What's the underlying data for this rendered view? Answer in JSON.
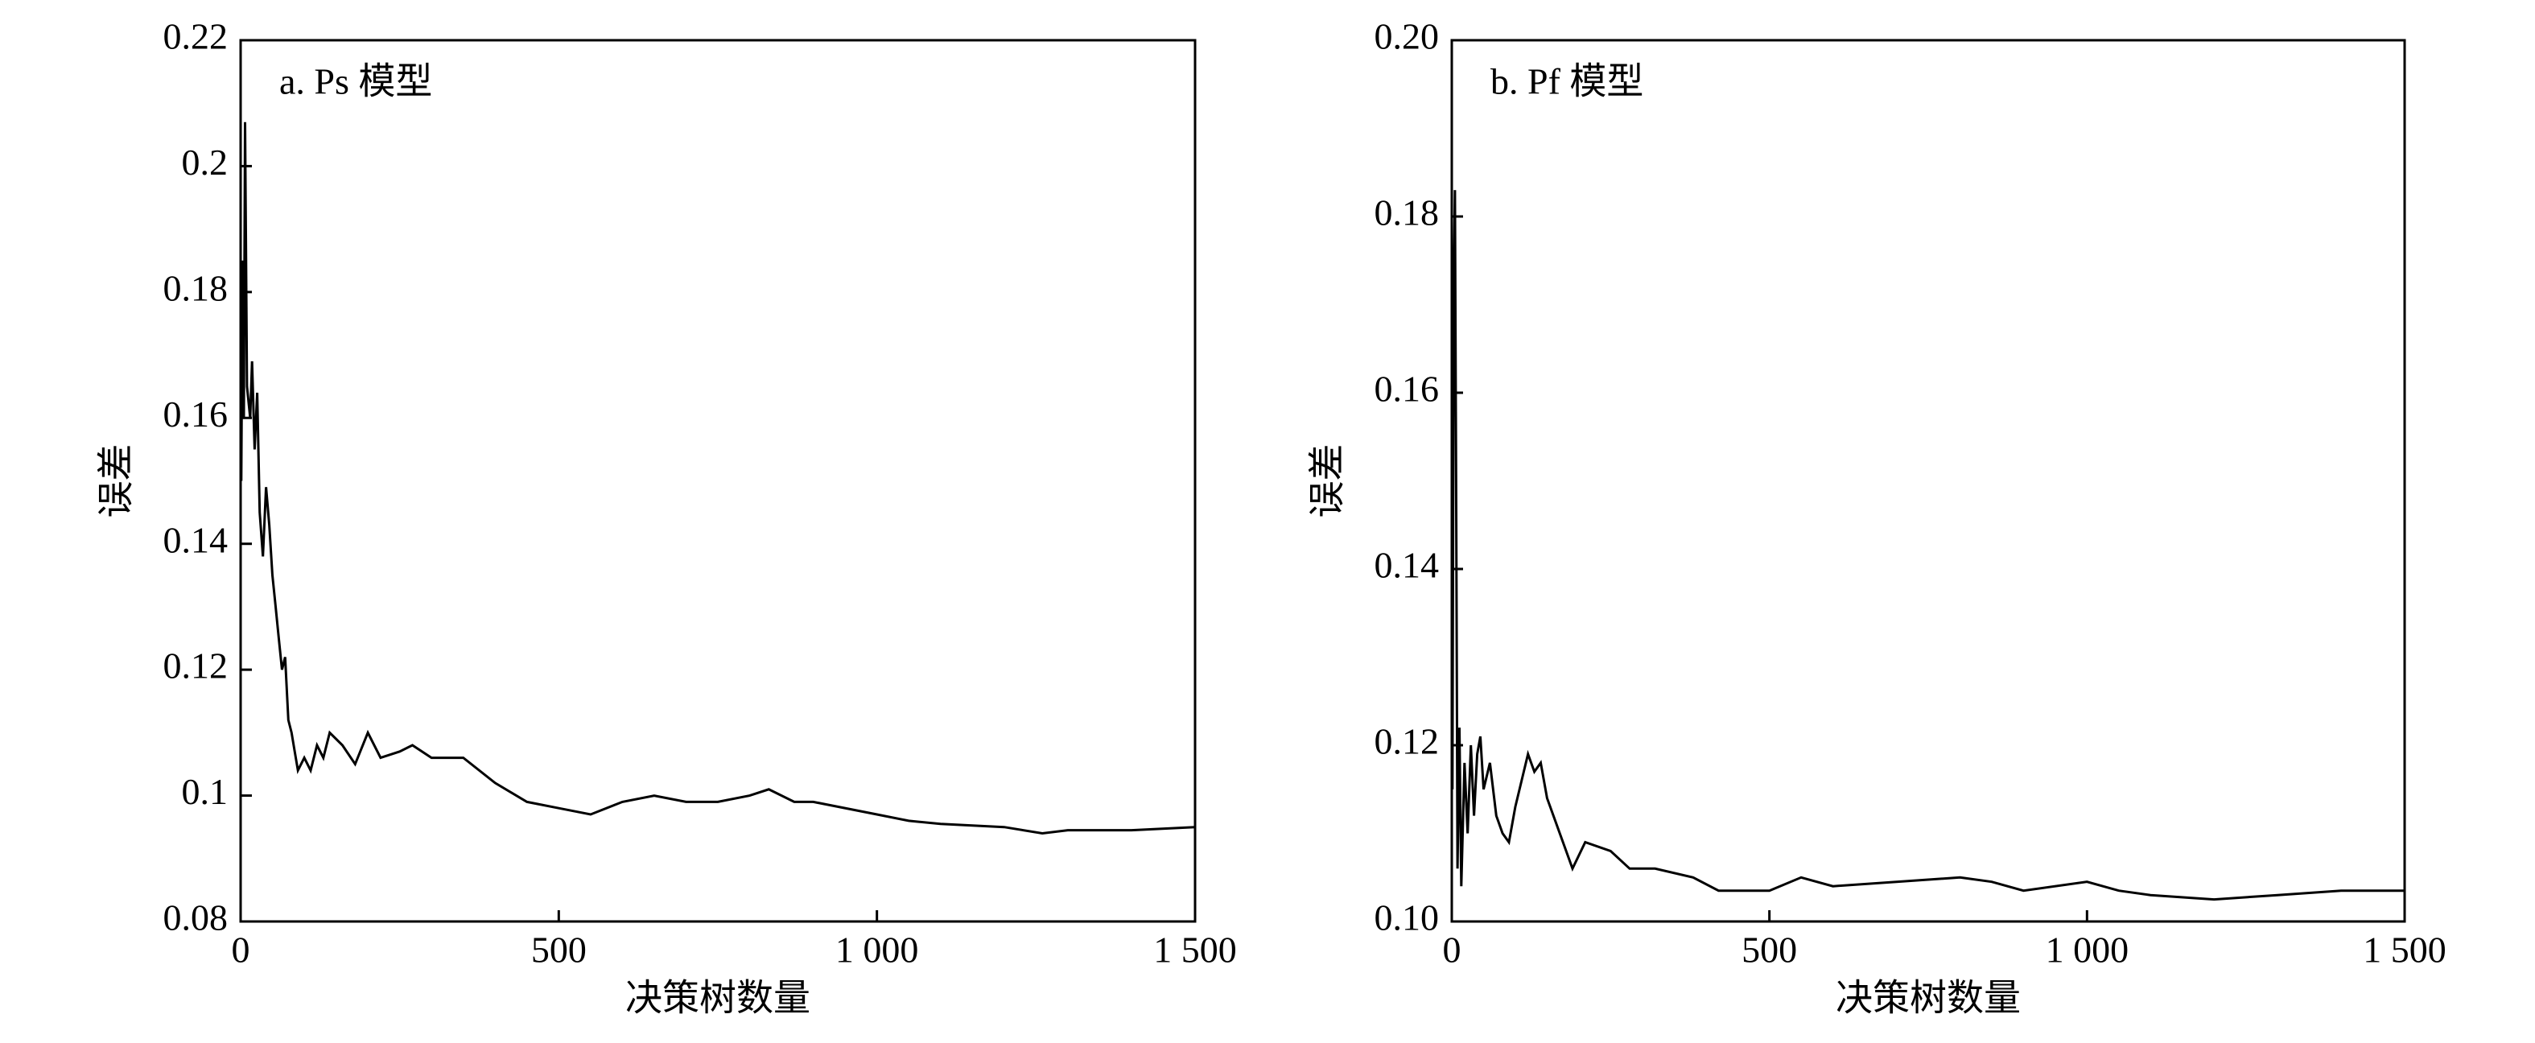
{
  "chart_data": [
    {
      "type": "line",
      "title": "a. Ps 模型",
      "x_label": "决策树数量",
      "y_label": "误差",
      "xlim": [
        0,
        1500
      ],
      "xticks": [
        0,
        500,
        {
          "value": 1000,
          "label": "1 000"
        },
        {
          "value": 1500,
          "label": "1 500"
        }
      ],
      "ylim": [
        0.08,
        0.22
      ],
      "yticks": [
        0.08,
        0.1,
        0.12,
        0.14,
        0.16,
        0.18,
        0.2,
        0.22
      ],
      "series": [
        {
          "name": "Ps",
          "color": "#000000",
          "x": [
            1,
            3,
            5,
            7,
            10,
            15,
            18,
            22,
            26,
            30,
            35,
            40,
            45,
            50,
            55,
            60,
            65,
            70,
            75,
            80,
            85,
            90,
            100,
            110,
            120,
            130,
            140,
            160,
            180,
            200,
            220,
            250,
            270,
            300,
            350,
            400,
            450,
            500,
            550,
            600,
            650,
            700,
            750,
            800,
            830,
            870,
            900,
            1000,
            1050,
            1100,
            1200,
            1260,
            1300,
            1400,
            1500
          ],
          "values": [
            0.15,
            0.185,
            0.16,
            0.207,
            0.165,
            0.16,
            0.169,
            0.155,
            0.164,
            0.145,
            0.138,
            0.149,
            0.143,
            0.135,
            0.13,
            0.125,
            0.12,
            0.122,
            0.112,
            0.11,
            0.107,
            0.104,
            0.106,
            0.104,
            0.108,
            0.106,
            0.11,
            0.108,
            0.105,
            0.11,
            0.106,
            0.107,
            0.108,
            0.106,
            0.106,
            0.102,
            0.099,
            0.098,
            0.097,
            0.099,
            0.1,
            0.099,
            0.099,
            0.1,
            0.101,
            0.099,
            0.099,
            0.097,
            0.096,
            0.0955,
            0.095,
            0.094,
            0.0945,
            0.0945,
            0.095
          ]
        }
      ]
    },
    {
      "type": "line",
      "title": "b. Pf 模型",
      "x_label": "决策树数量",
      "y_label": "误差",
      "xlim": [
        0,
        1500
      ],
      "xticks": [
        0,
        500,
        {
          "value": 1000,
          "label": "1 000"
        },
        {
          "value": 1500,
          "label": "1 500"
        }
      ],
      "ylim": [
        0.1,
        0.2
      ],
      "yticks": [
        {
          "value": 0.1,
          "label": "0.10"
        },
        0.12,
        0.14,
        0.16,
        0.18,
        {
          "value": 0.2,
          "label": "0.20"
        }
      ],
      "series": [
        {
          "name": "Pf",
          "color": "#000000",
          "x": [
            1,
            3,
            5,
            7,
            9,
            12,
            15,
            20,
            25,
            30,
            35,
            40,
            45,
            50,
            60,
            70,
            80,
            90,
            100,
            110,
            120,
            130,
            140,
            150,
            170,
            190,
            210,
            250,
            280,
            320,
            380,
            420,
            500,
            550,
            600,
            700,
            800,
            850,
            900,
            1000,
            1050,
            1100,
            1200,
            1300,
            1400,
            1500
          ],
          "values": [
            0.115,
            0.172,
            0.183,
            0.147,
            0.106,
            0.122,
            0.104,
            0.118,
            0.11,
            0.12,
            0.112,
            0.119,
            0.121,
            0.115,
            0.118,
            0.112,
            0.11,
            0.109,
            0.113,
            0.116,
            0.119,
            0.117,
            0.118,
            0.114,
            0.11,
            0.106,
            0.109,
            0.108,
            0.106,
            0.106,
            0.105,
            0.1035,
            0.1035,
            0.105,
            0.104,
            0.1045,
            0.105,
            0.1045,
            0.1035,
            0.1045,
            0.1035,
            0.103,
            0.1025,
            0.103,
            0.1035,
            0.1035
          ]
        }
      ]
    }
  ]
}
